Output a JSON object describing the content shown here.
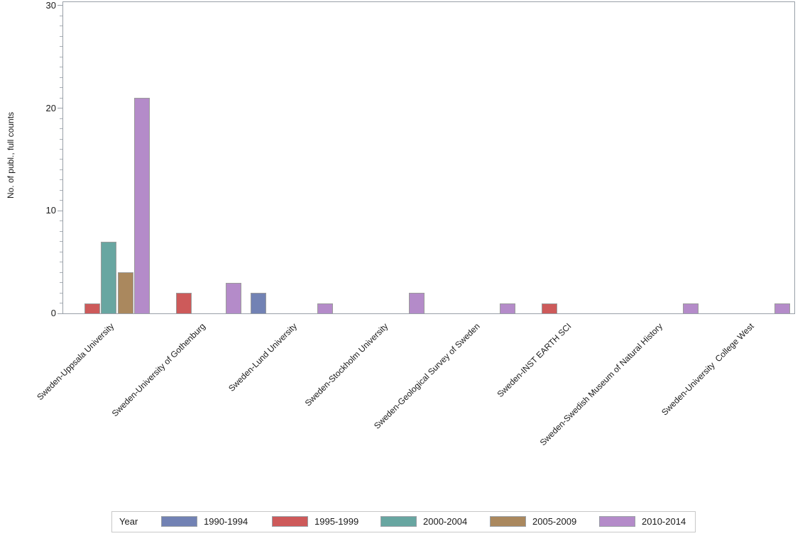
{
  "chart_data": {
    "type": "bar",
    "title": "",
    "xlabel": "",
    "ylabel": "No. of publ., full counts",
    "ylim": [
      0,
      30
    ],
    "yticks": [
      0,
      10,
      20,
      30
    ],
    "minor_tick_unit": 1,
    "grid": false,
    "legend_position": "bottom",
    "legend_title": "Year",
    "categories": [
      "Sweden-Uppsala University",
      "Sweden-University of Gothenburg",
      "Sweden-Lund University",
      "Sweden-Stockholm University",
      "Sweden-Geological Survey of Sweden",
      "Sweden-INST EARTH SCI",
      "Sweden-Swedish Museum of Natural History",
      "Sweden-University  College West"
    ],
    "series": [
      {
        "name": "1990-1994",
        "color": "#7282b4",
        "values": [
          0,
          0,
          2,
          0,
          0,
          0,
          0,
          0
        ]
      },
      {
        "name": "1995-1999",
        "color": "#cd5a5a",
        "values": [
          1,
          2,
          0,
          0,
          0,
          1,
          0,
          0
        ]
      },
      {
        "name": "2000-2004",
        "color": "#68a6a1",
        "values": [
          7,
          0,
          0,
          0,
          0,
          0,
          0,
          0
        ]
      },
      {
        "name": "2005-2009",
        "color": "#aa885e",
        "values": [
          4,
          0,
          0,
          0,
          0,
          0,
          0,
          0
        ]
      },
      {
        "name": "2010-2014",
        "color": "#b48bc9",
        "values": [
          21,
          3,
          1,
          2,
          1,
          0,
          1,
          1
        ]
      }
    ]
  }
}
